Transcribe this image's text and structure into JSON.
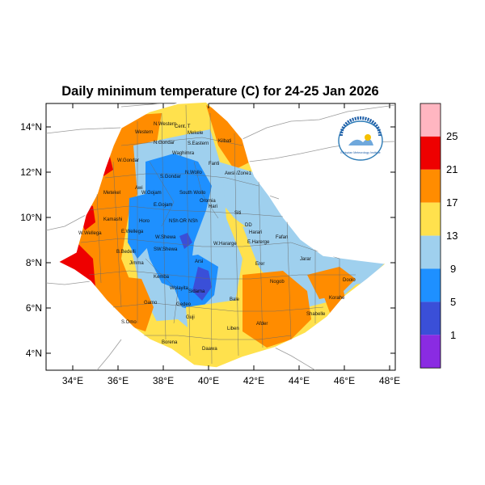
{
  "title": "Daily minimum temperature (C) for 24-25 Jan 2026",
  "axes": {
    "lat_ticks": [
      "4°N",
      "6°N",
      "8°N",
      "10°N",
      "12°N",
      "14°N"
    ],
    "lon_ticks": [
      "34°E",
      "36°E",
      "38°E",
      "40°E",
      "42°E",
      "44°E",
      "46°E",
      "48°E"
    ]
  },
  "colorbar": {
    "labels": [
      "25",
      "21",
      "17",
      "13",
      "9",
      "5",
      "1"
    ],
    "colors": [
      "#ffb6c1",
      "#ee0000",
      "#ff8c00",
      "#ffe14d",
      "#9fd0ee",
      "#1e90ff",
      "#3a4fd8",
      "#8a2be2"
    ]
  },
  "regions": [
    "N.Western",
    "Cent. T",
    "Mekele",
    "Kilbati",
    "Western",
    "N.Gondar",
    "S.Eastern",
    "Waghimra",
    "Fanti",
    "Awsi /Zone1",
    "S.Gondar",
    "N.Wollo",
    "W.Gondar",
    "Metekel",
    "Awi",
    "W.Gojam",
    "South Wollo",
    "E.Gojam",
    "Oromia",
    "Hari",
    "Kamashi",
    "Horo",
    "NSh",
    "OR",
    "NSh",
    "Siti",
    "DD",
    "W.Wellega",
    "E.Wellega",
    "W.Shewa",
    "E.Harerge",
    "Harari",
    "Fafan",
    "B.Bedelli",
    "SW.Shewa",
    "W.Hararge",
    "Jimma",
    "Arsi",
    "Erer",
    "Jarar",
    "Wolayita",
    "Kemba",
    "Sidama",
    "Bale",
    "Nogob",
    "Doolo",
    "Gamo",
    "Gedeo",
    "Korahe",
    "S.Omo",
    "Guji",
    "Shabelle",
    "Liben",
    "Afder",
    "Borena",
    "Daawa"
  ],
  "logo_text": "Ethiopian Meteorology Institute"
}
